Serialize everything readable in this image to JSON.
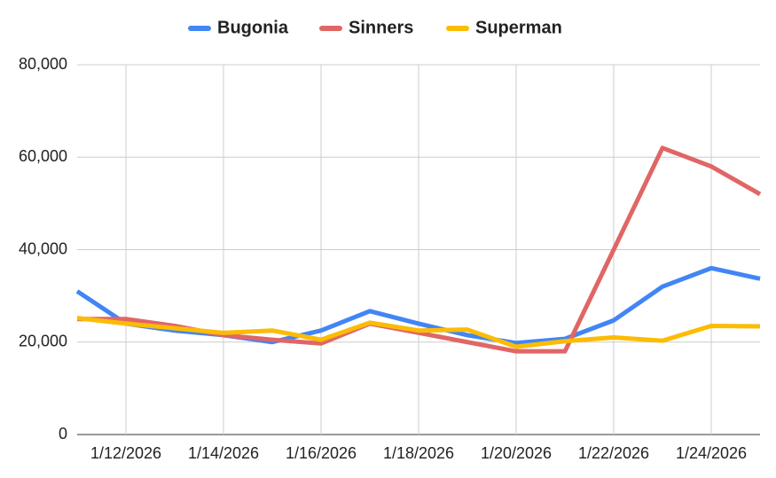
{
  "chart_data": {
    "type": "line",
    "categories": [
      null,
      "1/12/2026",
      null,
      "1/14/2026",
      null,
      "1/16/2026",
      null,
      "1/18/2026",
      null,
      "1/20/2026",
      null,
      "1/22/2026",
      null,
      "1/24/2026",
      null
    ],
    "series": [
      {
        "name": "Bugonia",
        "color": "#4285f4",
        "values": [
          31000,
          24000,
          22500,
          21500,
          20000,
          22500,
          26700,
          24000,
          21500,
          19800,
          20700,
          24700,
          32000,
          36000,
          33700
        ]
      },
      {
        "name": "Sinners",
        "color": "#e06666",
        "values": [
          25000,
          25000,
          23500,
          21500,
          20500,
          19700,
          24000,
          22000,
          20000,
          18000,
          18000,
          40000,
          62000,
          58000,
          52000
        ]
      },
      {
        "name": "Superman",
        "color": "#fbbc04",
        "values": [
          25200,
          24000,
          23000,
          22000,
          22500,
          20500,
          24200,
          22500,
          22700,
          19000,
          20200,
          21000,
          20300,
          23500,
          23400
        ]
      }
    ],
    "ylim": [
      0,
      80000
    ],
    "yticks": [
      0,
      {
        "value": 20000,
        "label": "20,000"
      },
      {
        "value": 40000,
        "label": "40,000"
      },
      {
        "value": 60000,
        "label": "60,000"
      },
      {
        "value": 80000,
        "label": "80,000"
      }
    ],
    "grid": true,
    "legend": "top"
  }
}
